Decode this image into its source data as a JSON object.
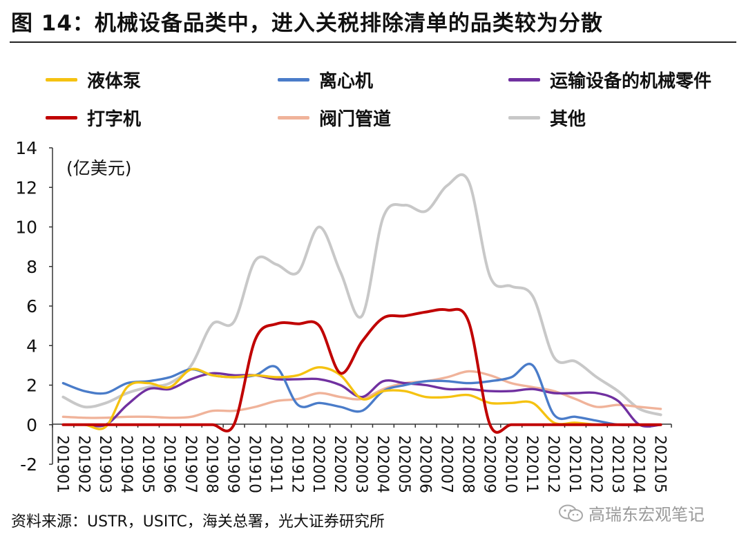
{
  "title": "图 14：机械设备品类中，进入关税排除清单的品类较为分散",
  "source": "资料来源：USTR，USITC，海关总署，光大证券研究所",
  "watermark": "高瑞东宏观笔记",
  "colors": {
    "pump": "#F5C211",
    "centrifuge": "#4A7CC9",
    "parts": "#7030A0",
    "typewriter": "#C00000",
    "valves": "#F0B39A",
    "other": "#C8C8C8"
  },
  "chart_data": {
    "type": "line",
    "unit_label": "(亿美元)",
    "ylim": [
      -2,
      14
    ],
    "yticks": [
      -2,
      0,
      2,
      4,
      6,
      8,
      10,
      12,
      14
    ],
    "legend_position": "top",
    "grid": false,
    "x": [
      "201901",
      "201902",
      "201903",
      "201904",
      "201905",
      "201906",
      "201907",
      "201908",
      "201909",
      "201910",
      "201911",
      "201912",
      "202001",
      "202002",
      "202003",
      "202004",
      "202005",
      "202006",
      "202007",
      "202008",
      "202009",
      "202010",
      "202011",
      "202012",
      "202101",
      "202102",
      "202103",
      "202104",
      "202105"
    ],
    "series": [
      {
        "name": "液体泵",
        "color_key": "pump",
        "values": [
          0.0,
          0.0,
          -0.1,
          1.9,
          2.1,
          1.9,
          2.8,
          2.5,
          2.4,
          2.5,
          2.4,
          2.5,
          2.9,
          2.5,
          1.3,
          1.7,
          1.7,
          1.4,
          1.4,
          1.5,
          1.1,
          1.1,
          1.1,
          0.1,
          0.1,
          0.0,
          0.0,
          0.0,
          0.0
        ]
      },
      {
        "name": "离心机",
        "color_key": "centrifuge",
        "values": [
          2.1,
          1.7,
          1.6,
          2.1,
          2.2,
          2.4,
          2.8,
          2.5,
          2.4,
          2.5,
          2.9,
          1.0,
          1.1,
          0.9,
          0.7,
          1.7,
          2.0,
          2.2,
          2.2,
          2.1,
          2.2,
          2.4,
          3.0,
          0.5,
          0.4,
          0.2,
          0.0,
          0.0,
          0.0
        ]
      },
      {
        "name": "运输设备的机械零件",
        "color_key": "parts",
        "values": [
          0.0,
          0.0,
          0.0,
          1.0,
          1.8,
          1.8,
          2.3,
          2.6,
          2.5,
          2.5,
          2.3,
          2.3,
          2.3,
          2.0,
          1.4,
          2.2,
          2.1,
          2.0,
          1.8,
          1.8,
          1.7,
          1.7,
          1.8,
          1.6,
          1.6,
          1.6,
          1.2,
          0.0,
          0.0
        ]
      },
      {
        "name": "打字机",
        "color_key": "typewriter",
        "values": [
          0.0,
          0.0,
          0.0,
          0.0,
          0.0,
          0.0,
          0.0,
          0.0,
          0.0,
          4.3,
          5.1,
          5.1,
          5.0,
          2.6,
          4.2,
          5.4,
          5.5,
          5.7,
          5.8,
          5.2,
          0.0,
          0.0,
          0.0,
          0.0,
          0.0,
          0.0,
          0.0,
          0.0,
          0.0
        ]
      },
      {
        "name": "阀门管道",
        "color_key": "valves",
        "values": [
          0.4,
          0.35,
          0.35,
          0.4,
          0.4,
          0.35,
          0.4,
          0.7,
          0.7,
          0.9,
          1.2,
          1.3,
          1.6,
          1.4,
          1.3,
          1.8,
          2.1,
          2.2,
          2.4,
          2.7,
          2.5,
          2.1,
          1.9,
          1.7,
          1.3,
          0.9,
          1.0,
          0.9,
          0.8
        ]
      },
      {
        "name": "其他",
        "color_key": "other",
        "values": [
          1.4,
          0.9,
          1.1,
          1.6,
          1.9,
          2.1,
          3.0,
          5.1,
          5.2,
          8.3,
          8.1,
          7.7,
          10.0,
          7.7,
          5.5,
          10.5,
          11.1,
          10.8,
          12.1,
          12.3,
          7.5,
          7.0,
          6.5,
          3.4,
          3.2,
          2.4,
          1.7,
          0.8,
          0.5
        ]
      }
    ]
  }
}
